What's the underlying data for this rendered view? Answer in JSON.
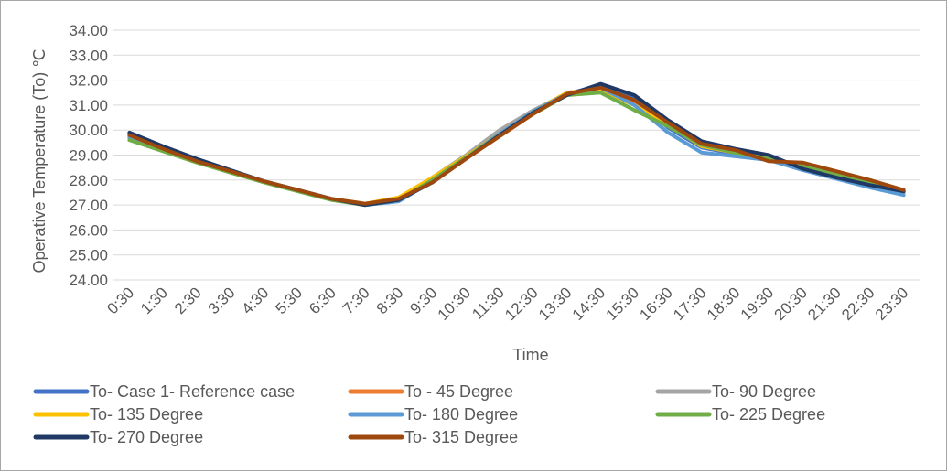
{
  "chart_data": {
    "type": "line",
    "xlabel": "Time",
    "ylabel": "Operative Temperature (To) ℃",
    "ylim": [
      24,
      34
    ],
    "yticks": [
      "24.00",
      "25.00",
      "26.00",
      "27.00",
      "28.00",
      "29.00",
      "30.00",
      "31.00",
      "32.00",
      "33.00",
      "34.00"
    ],
    "grid": "horizontal",
    "legend_position": "bottom",
    "categories": [
      "0:30",
      "1:30",
      "2:30",
      "3:30",
      "4:30",
      "5:30",
      "6:30",
      "7:30",
      "8:30",
      "9:30",
      "10:30",
      "11:30",
      "12:30",
      "13:30",
      "14:30",
      "15:30",
      "16:30",
      "17:30",
      "18:30",
      "19:30",
      "20:30",
      "21:30",
      "22:30",
      "23:30"
    ],
    "series": [
      {
        "name": "To- Case 1- Reference case",
        "color": "#4472c4",
        "values": [
          29.85,
          29.3,
          28.8,
          28.35,
          27.95,
          27.6,
          27.25,
          27.0,
          27.15,
          27.95,
          28.9,
          29.85,
          30.7,
          31.45,
          31.8,
          31.3,
          30.1,
          29.3,
          29.05,
          28.85,
          28.45,
          28.1,
          27.8,
          27.5
        ]
      },
      {
        "name": "To - 45 Degree",
        "color": "#ed7d31",
        "values": [
          29.75,
          29.25,
          28.75,
          28.35,
          27.95,
          27.6,
          27.25,
          27.05,
          27.2,
          28.0,
          28.9,
          29.8,
          30.7,
          31.5,
          31.65,
          31.05,
          30.2,
          29.4,
          29.15,
          28.85,
          28.6,
          28.2,
          27.9,
          27.55
        ]
      },
      {
        "name": "To- 90 Degree",
        "color": "#a5a5a5",
        "values": [
          29.75,
          29.2,
          28.75,
          28.3,
          27.95,
          27.6,
          27.25,
          27.05,
          27.25,
          28.1,
          29.0,
          30.0,
          30.8,
          31.45,
          31.65,
          31.0,
          30.2,
          29.35,
          29.1,
          28.8,
          28.55,
          28.15,
          27.85,
          27.5
        ]
      },
      {
        "name": "To- 135 Degree",
        "color": "#ffc000",
        "values": [
          29.7,
          29.2,
          28.75,
          28.3,
          27.95,
          27.6,
          27.25,
          27.05,
          27.3,
          28.1,
          28.95,
          29.85,
          30.75,
          31.5,
          31.6,
          31.0,
          30.2,
          29.35,
          29.1,
          28.8,
          28.55,
          28.2,
          27.9,
          27.55
        ]
      },
      {
        "name": "To- 180 Degree",
        "color": "#5b9bd5",
        "values": [
          29.7,
          29.2,
          28.75,
          28.3,
          27.95,
          27.6,
          27.25,
          27.0,
          27.15,
          28.0,
          28.9,
          29.85,
          30.75,
          31.45,
          31.7,
          31.0,
          29.9,
          29.1,
          28.95,
          28.8,
          28.4,
          28.05,
          27.7,
          27.4
        ]
      },
      {
        "name": "To- 225 Degree",
        "color": "#70ad47",
        "values": [
          29.6,
          29.15,
          28.7,
          28.3,
          27.9,
          27.55,
          27.2,
          27.0,
          27.2,
          28.0,
          28.9,
          29.8,
          30.65,
          31.4,
          31.5,
          30.8,
          30.15,
          29.4,
          29.1,
          28.85,
          28.6,
          28.2,
          27.9,
          27.55
        ]
      },
      {
        "name": "To- 270 Degree",
        "color": "#203864",
        "values": [
          29.9,
          29.35,
          28.85,
          28.4,
          27.95,
          27.6,
          27.25,
          27.0,
          27.2,
          27.9,
          28.85,
          29.8,
          30.7,
          31.4,
          31.85,
          31.4,
          30.4,
          29.55,
          29.25,
          29.0,
          28.45,
          28.1,
          27.8,
          27.55
        ]
      },
      {
        "name": "To- 315 Degree",
        "color": "#9e480e",
        "values": [
          29.8,
          29.25,
          28.75,
          28.35,
          27.95,
          27.6,
          27.25,
          27.05,
          27.25,
          27.9,
          28.85,
          29.75,
          30.65,
          31.45,
          31.7,
          31.2,
          30.3,
          29.45,
          29.2,
          28.75,
          28.7,
          28.35,
          28.0,
          27.6
        ]
      }
    ]
  }
}
